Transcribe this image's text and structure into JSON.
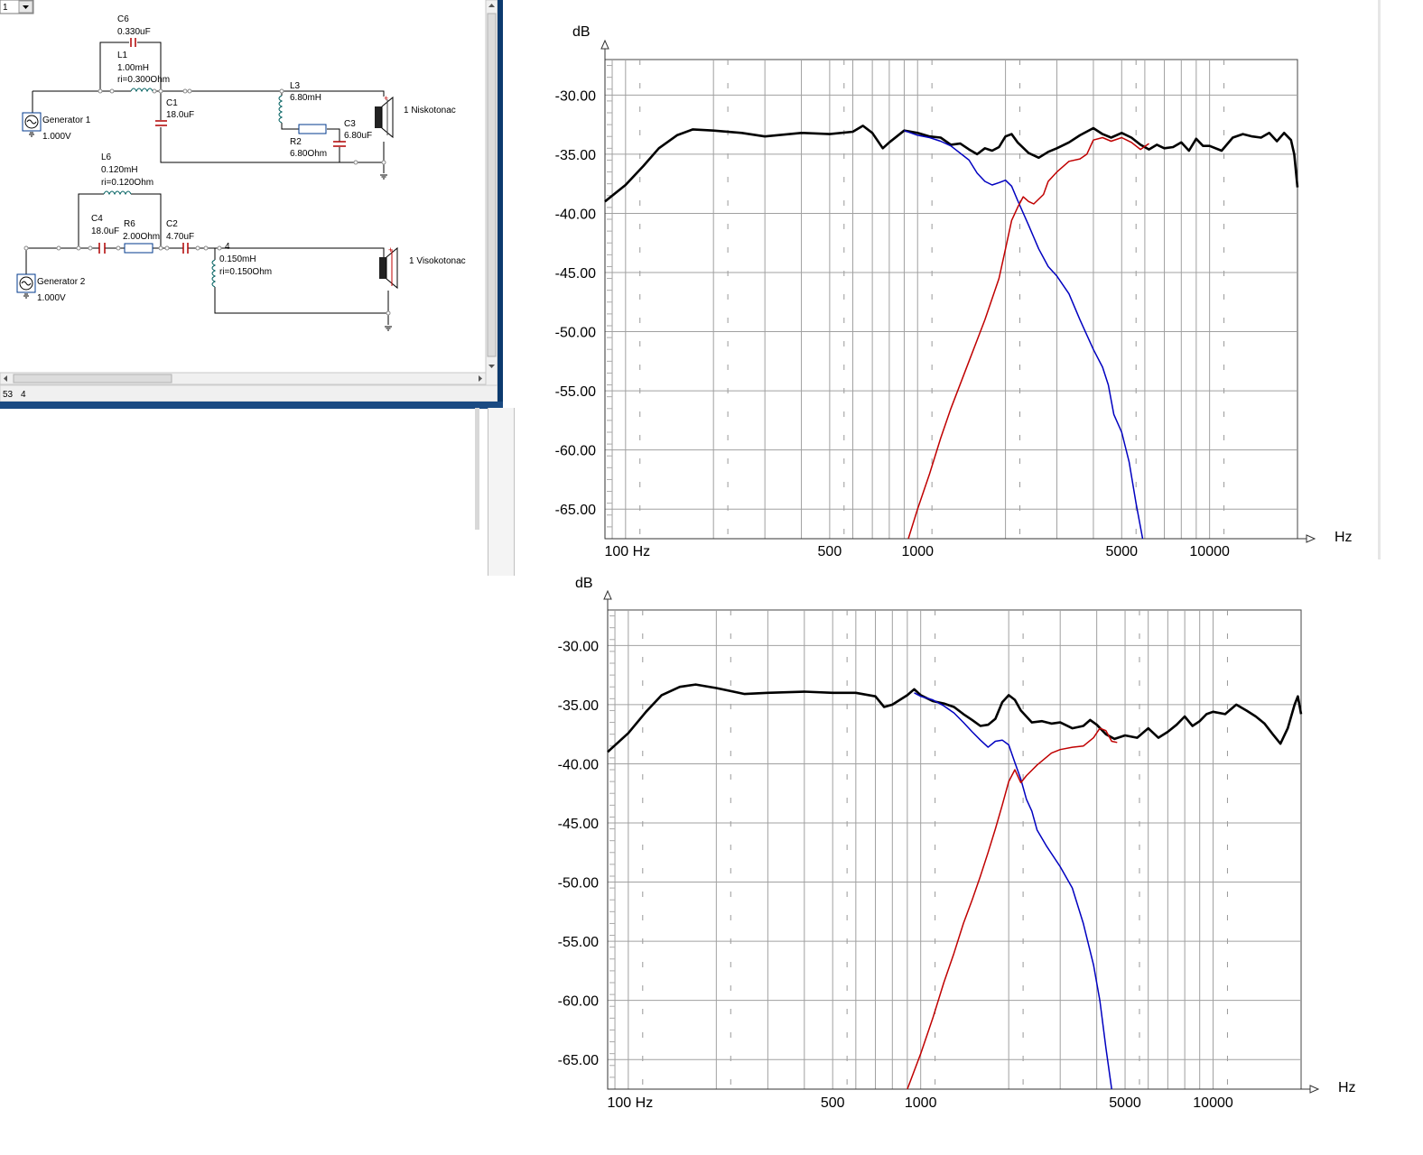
{
  "schematic": {
    "combo_value": "1",
    "status_left": "53",
    "status_right": "4",
    "woofer": {
      "c6": {
        "name": "C6",
        "value": "0.330uF"
      },
      "l1": {
        "name": "L1",
        "value": "1.00mH",
        "ri": "ri=0.300Ohm"
      },
      "c1": {
        "name": "C1",
        "value": "18.0uF"
      },
      "l3": {
        "name": "L3",
        "value": "6.80mH"
      },
      "r2": {
        "name": "R2",
        "value": "6.80Ohm"
      },
      "c3": {
        "name": "C3",
        "value": "6.80uF"
      },
      "generator": {
        "name": "Generator 1",
        "value": "1.000V"
      },
      "speaker": "1 Niskotonac"
    },
    "tweeter": {
      "l6": {
        "name": "L6",
        "value": "0.120mH",
        "ri": "ri=0.120Ohm"
      },
      "c4": {
        "name": "C4",
        "value": "18.0uF"
      },
      "r6": {
        "name": "R6",
        "value": "2.00Ohm"
      },
      "c2": {
        "name": "C2",
        "value": "4.70uF"
      },
      "node": "4",
      "l_out": {
        "value": "0.150mH",
        "ri": "ri=0.150Ohm"
      },
      "generator": {
        "name": "Generator 2",
        "value": "1.000V"
      },
      "speaker": "1 Visokotonac"
    }
  },
  "chart_data": [
    {
      "type": "line",
      "ylabel": "dB",
      "xlabel": "Hz",
      "xscale": "log",
      "xlim": [
        85,
        20000
      ],
      "ylim": [
        -67.5,
        -27
      ],
      "yticks": [
        "-30.00",
        "-35.00",
        "-40.00",
        "-45.00",
        "-50.00",
        "-55.00",
        "-60.00",
        "-65.00"
      ],
      "xticks": [
        "100 Hz",
        "500",
        "1000",
        "5000",
        "10000"
      ],
      "grid": true,
      "series": [
        {
          "color": "#000000",
          "points": [
            [
              85,
              -39
            ],
            [
              100,
              -37.6
            ],
            [
              115,
              -36
            ],
            [
              130,
              -34.5
            ],
            [
              150,
              -33.4
            ],
            [
              170,
              -32.9
            ],
            [
              200,
              -33
            ],
            [
              250,
              -33.2
            ],
            [
              300,
              -33.5
            ],
            [
              400,
              -33.2
            ],
            [
              500,
              -33.3
            ],
            [
              600,
              -33.1
            ],
            [
              650,
              -32.6
            ],
            [
              700,
              -33.2
            ],
            [
              760,
              -34.5
            ],
            [
              800,
              -34
            ],
            [
              900,
              -33
            ],
            [
              1000,
              -33.2
            ],
            [
              1100,
              -33.5
            ],
            [
              1200,
              -33.6
            ],
            [
              1300,
              -34.2
            ],
            [
              1400,
              -34.1
            ],
            [
              1500,
              -34.6
            ],
            [
              1600,
              -35
            ],
            [
              1700,
              -34.5
            ],
            [
              1800,
              -34.7
            ],
            [
              1900,
              -34.4
            ],
            [
              2000,
              -33.5
            ],
            [
              2100,
              -33.3
            ],
            [
              2200,
              -34
            ],
            [
              2400,
              -34.9
            ],
            [
              2600,
              -35.3
            ],
            [
              2800,
              -34.8
            ],
            [
              3000,
              -34.5
            ],
            [
              3300,
              -34
            ],
            [
              3600,
              -33.4
            ],
            [
              4000,
              -32.8
            ],
            [
              4300,
              -33.3
            ],
            [
              4600,
              -33.6
            ],
            [
              5000,
              -33.2
            ],
            [
              5400,
              -33.6
            ],
            [
              5800,
              -34.2
            ],
            [
              6200,
              -34.6
            ],
            [
              6600,
              -34.2
            ],
            [
              7000,
              -34.5
            ],
            [
              7500,
              -34.4
            ],
            [
              8000,
              -34
            ],
            [
              8500,
              -34.7
            ],
            [
              9000,
              -33.7
            ],
            [
              9500,
              -34.3
            ],
            [
              10000,
              -34.3
            ],
            [
              11000,
              -34.7
            ],
            [
              12000,
              -33.6
            ],
            [
              13000,
              -33.3
            ],
            [
              14000,
              -33.5
            ],
            [
              15000,
              -33.6
            ],
            [
              16000,
              -33.2
            ],
            [
              17000,
              -33.9
            ],
            [
              18000,
              -33.2
            ],
            [
              19000,
              -33.8
            ],
            [
              19500,
              -35
            ],
            [
              20000,
              -37.8
            ]
          ]
        },
        {
          "color": "#0000c0",
          "points": [
            [
              900,
              -33
            ],
            [
              1000,
              -33.4
            ],
            [
              1100,
              -33.6
            ],
            [
              1200,
              -33.9
            ],
            [
              1300,
              -34.3
            ],
            [
              1500,
              -35.5
            ],
            [
              1600,
              -36.6
            ],
            [
              1700,
              -37.3
            ],
            [
              1800,
              -37.6
            ],
            [
              1900,
              -37.4
            ],
            [
              2000,
              -37.2
            ],
            [
              2100,
              -37.7
            ],
            [
              2200,
              -38.9
            ],
            [
              2400,
              -41
            ],
            [
              2600,
              -43
            ],
            [
              2800,
              -44.5
            ],
            [
              3000,
              -45.3
            ],
            [
              3300,
              -46.8
            ],
            [
              3600,
              -49
            ],
            [
              4000,
              -51.5
            ],
            [
              4300,
              -53
            ],
            [
              4500,
              -54.5
            ],
            [
              4700,
              -57
            ],
            [
              5000,
              -58.5
            ],
            [
              5300,
              -61
            ],
            [
              5600,
              -64.5
            ],
            [
              5900,
              -67.5
            ]
          ]
        },
        {
          "color": "#c00000",
          "points": [
            [
              930,
              -67.5
            ],
            [
              1000,
              -65
            ],
            [
              1100,
              -62
            ],
            [
              1200,
              -59
            ],
            [
              1300,
              -56.5
            ],
            [
              1500,
              -52.5
            ],
            [
              1700,
              -49
            ],
            [
              1900,
              -45.5
            ],
            [
              2000,
              -43
            ],
            [
              2100,
              -40.6
            ],
            [
              2200,
              -39.5
            ],
            [
              2300,
              -38.6
            ],
            [
              2400,
              -39
            ],
            [
              2500,
              -39.2
            ],
            [
              2700,
              -38.4
            ],
            [
              2800,
              -37.3
            ],
            [
              3000,
              -36.5
            ],
            [
              3300,
              -35.6
            ],
            [
              3600,
              -35.4
            ],
            [
              3800,
              -35
            ],
            [
              4000,
              -33.8
            ],
            [
              4300,
              -33.6
            ],
            [
              4600,
              -33.9
            ],
            [
              5000,
              -33.6
            ],
            [
              5400,
              -34
            ],
            [
              5800,
              -34.6
            ],
            [
              6200,
              -34.1
            ]
          ]
        }
      ]
    },
    {
      "type": "line",
      "ylabel": "dB",
      "xlabel": "Hz",
      "xscale": "log",
      "xlim": [
        85,
        20000
      ],
      "ylim": [
        -67.5,
        -27
      ],
      "yticks": [
        "-30.00",
        "-35.00",
        "-40.00",
        "-45.00",
        "-50.00",
        "-55.00",
        "-60.00",
        "-65.00"
      ],
      "xticks": [
        "100 Hz",
        "500",
        "1000",
        "5000",
        "10000"
      ],
      "grid": true,
      "series": [
        {
          "color": "#000000",
          "points": [
            [
              85,
              -39
            ],
            [
              100,
              -37.4
            ],
            [
              115,
              -35.6
            ],
            [
              130,
              -34.2
            ],
            [
              150,
              -33.5
            ],
            [
              170,
              -33.3
            ],
            [
              200,
              -33.6
            ],
            [
              250,
              -34.1
            ],
            [
              300,
              -34
            ],
            [
              400,
              -33.9
            ],
            [
              500,
              -34
            ],
            [
              600,
              -34
            ],
            [
              700,
              -34.3
            ],
            [
              750,
              -35.2
            ],
            [
              800,
              -35
            ],
            [
              900,
              -34.2
            ],
            [
              950,
              -33.7
            ],
            [
              1000,
              -34.2
            ],
            [
              1100,
              -34.7
            ],
            [
              1200,
              -34.9
            ],
            [
              1300,
              -35.2
            ],
            [
              1400,
              -35.8
            ],
            [
              1500,
              -36.3
            ],
            [
              1600,
              -36.8
            ],
            [
              1700,
              -36.7
            ],
            [
              1800,
              -36.2
            ],
            [
              1900,
              -34.8
            ],
            [
              2000,
              -34.2
            ],
            [
              2100,
              -34.6
            ],
            [
              2200,
              -35.5
            ],
            [
              2400,
              -36.5
            ],
            [
              2600,
              -36.4
            ],
            [
              2800,
              -36.6
            ],
            [
              3000,
              -36.5
            ],
            [
              3300,
              -37
            ],
            [
              3600,
              -36.8
            ],
            [
              3800,
              -36.3
            ],
            [
              4000,
              -36.7
            ],
            [
              4300,
              -37.5
            ],
            [
              4600,
              -37.9
            ],
            [
              5000,
              -37.6
            ],
            [
              5500,
              -37.8
            ],
            [
              6000,
              -37
            ],
            [
              6500,
              -37.8
            ],
            [
              7000,
              -37.3
            ],
            [
              7500,
              -36.7
            ],
            [
              8000,
              -36
            ],
            [
              8500,
              -36.8
            ],
            [
              9000,
              -36.4
            ],
            [
              9500,
              -35.8
            ],
            [
              10000,
              -35.6
            ],
            [
              11000,
              -35.8
            ],
            [
              12000,
              -35
            ],
            [
              13000,
              -35.5
            ],
            [
              14000,
              -36
            ],
            [
              15000,
              -36.6
            ],
            [
              16000,
              -37.5
            ],
            [
              17000,
              -38.3
            ],
            [
              18000,
              -37
            ],
            [
              19000,
              -35
            ],
            [
              19500,
              -34.3
            ],
            [
              20000,
              -35.8
            ]
          ]
        },
        {
          "color": "#0000c0",
          "points": [
            [
              950,
              -34
            ],
            [
              1000,
              -34.3
            ],
            [
              1100,
              -34.6
            ],
            [
              1200,
              -35.1
            ],
            [
              1300,
              -35.7
            ],
            [
              1400,
              -36.5
            ],
            [
              1500,
              -37.3
            ],
            [
              1600,
              -38
            ],
            [
              1700,
              -38.6
            ],
            [
              1800,
              -38.1
            ],
            [
              1900,
              -38
            ],
            [
              2000,
              -38.4
            ],
            [
              2100,
              -39.9
            ],
            [
              2200,
              -41.3
            ],
            [
              2300,
              -43
            ],
            [
              2400,
              -44
            ],
            [
              2500,
              -45.6
            ],
            [
              2700,
              -47
            ],
            [
              3000,
              -48.7
            ],
            [
              3300,
              -50.5
            ],
            [
              3600,
              -53.5
            ],
            [
              3900,
              -57
            ],
            [
              4100,
              -60
            ],
            [
              4300,
              -64
            ],
            [
              4500,
              -67.5
            ]
          ]
        },
        {
          "color": "#c00000",
          "points": [
            [
              900,
              -67.5
            ],
            [
              1000,
              -64.5
            ],
            [
              1100,
              -61.5
            ],
            [
              1200,
              -58.5
            ],
            [
              1300,
              -56
            ],
            [
              1400,
              -53.5
            ],
            [
              1500,
              -51.5
            ],
            [
              1600,
              -49.5
            ],
            [
              1700,
              -47.5
            ],
            [
              1800,
              -45.5
            ],
            [
              1900,
              -43.5
            ],
            [
              2000,
              -41.5
            ],
            [
              2100,
              -40.5
            ],
            [
              2200,
              -41.6
            ],
            [
              2300,
              -41
            ],
            [
              2500,
              -40.1
            ],
            [
              2800,
              -39.1
            ],
            [
              3000,
              -38.8
            ],
            [
              3300,
              -38.6
            ],
            [
              3600,
              -38.5
            ],
            [
              3900,
              -37.8
            ],
            [
              4100,
              -37
            ],
            [
              4300,
              -37.2
            ],
            [
              4500,
              -38.1
            ],
            [
              4700,
              -38.2
            ]
          ]
        }
      ]
    }
  ]
}
